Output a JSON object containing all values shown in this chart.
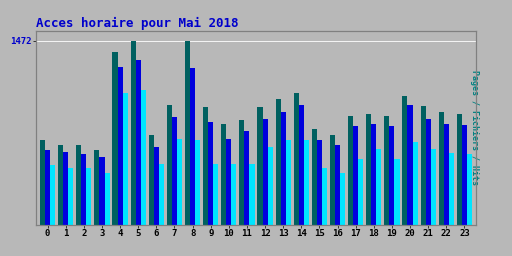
{
  "title": "Acces horaire pour Mai 2018",
  "title_color": "#0000cc",
  "background_color": "#b8b8b8",
  "plot_bg_color": "#b8b8b8",
  "ylabel_right": "Pages / Fichiers / Hits",
  "ylabel_right_color": "#008080",
  "ytick_label": "1472",
  "ytick_label_color": "#0000cc",
  "hours": [
    0,
    1,
    2,
    3,
    4,
    5,
    6,
    7,
    8,
    9,
    10,
    11,
    12,
    13,
    14,
    15,
    16,
    17,
    18,
    19,
    20,
    21,
    22,
    23
  ],
  "pages": [
    680,
    640,
    640,
    600,
    1380,
    1472,
    720,
    960,
    1472,
    940,
    810,
    840,
    940,
    1010,
    1050,
    770,
    720,
    870,
    890,
    870,
    1030,
    950,
    900,
    890
  ],
  "fichiers": [
    600,
    580,
    570,
    540,
    1260,
    1320,
    620,
    860,
    1250,
    820,
    690,
    750,
    850,
    900,
    960,
    680,
    640,
    790,
    810,
    790,
    960,
    850,
    810,
    800
  ],
  "hits": [
    480,
    460,
    455,
    420,
    1050,
    1080,
    490,
    690,
    680,
    490,
    490,
    490,
    620,
    680,
    680,
    460,
    420,
    530,
    610,
    530,
    660,
    610,
    575,
    565
  ],
  "color_pages": "#006060",
  "color_fichiers": "#0000dd",
  "color_hits": "#00e5ff",
  "bar_width": 0.28,
  "ylim_max": 1550,
  "ytick_val": 1472,
  "figsize": [
    5.12,
    2.56
  ],
  "dpi": 100
}
